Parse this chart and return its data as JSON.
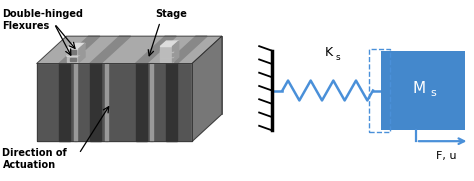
{
  "bg_color": "#ffffff",
  "spring_color": "#4a90d9",
  "mass_color": "#4488cc",
  "wall_color": "#000000",
  "dashed_color": "#4a90d9",
  "arrow_color": "#4a90d9",
  "text_color": "#000000",
  "label_Ks": "K",
  "label_Ks_sub": "s",
  "label_Ms": "M",
  "label_Ms_sub": "s",
  "label_Fu": "F, u",
  "label_double_hinged": "Double-hinged\nFlexures",
  "label_stage": "Stage",
  "label_direction": "Direction of\nActuation",
  "body_dark": "#555555",
  "body_top": "#aaaaaa",
  "body_right": "#777777",
  "slot_dark": "#333333",
  "slot_light": "#999999",
  "flexure_light": "#cccccc",
  "spring_lw": 1.8,
  "wall_lw": 2.5,
  "arrow_lw": 1.6,
  "dashed_lw": 1.0,
  "label_fs": 7,
  "diagram_spring_n": 4,
  "diagram_spring_amp": 0.55
}
